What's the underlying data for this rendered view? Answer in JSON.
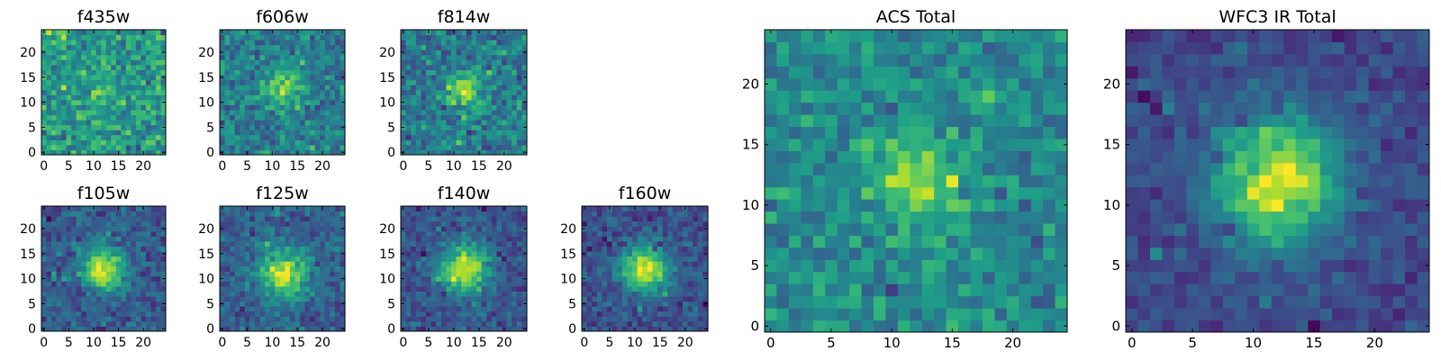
{
  "chart_data": [
    {
      "type": "heatmap",
      "title": "f435w",
      "grid_size": 25,
      "colormap": "viridis",
      "source_blob": {
        "cx": 12,
        "cy": 12,
        "sigma": 3.0,
        "amplitude": 0.05
      },
      "noise": 0.38,
      "bias": 0.55,
      "xticks": [
        "0",
        "5",
        "10",
        "15",
        "20"
      ],
      "yticks": [
        "0",
        "5",
        "10",
        "15",
        "20"
      ]
    },
    {
      "type": "heatmap",
      "title": "f606w",
      "grid_size": 25,
      "colormap": "viridis",
      "source_blob": {
        "cx": 12,
        "cy": 13,
        "sigma": 2.6,
        "amplitude": 0.38
      },
      "noise": 0.32,
      "bias": 0.42,
      "xticks": [
        "0",
        "5",
        "10",
        "15",
        "20"
      ],
      "yticks": [
        "0",
        "5",
        "10",
        "15",
        "20"
      ]
    },
    {
      "type": "heatmap",
      "title": "f814w",
      "grid_size": 25,
      "colormap": "viridis",
      "source_blob": {
        "cx": 12,
        "cy": 12,
        "sigma": 2.4,
        "amplitude": 0.42
      },
      "noise": 0.33,
      "bias": 0.42,
      "xticks": [
        "0",
        "5",
        "10",
        "15",
        "20"
      ],
      "yticks": [
        "0",
        "5",
        "10",
        "15",
        "20"
      ]
    },
    {
      "type": "heatmap",
      "title": "f105w",
      "grid_size": 25,
      "colormap": "viridis",
      "source_blob": {
        "cx": 12,
        "cy": 12,
        "sigma": 3.0,
        "amplitude": 0.65
      },
      "noise": 0.22,
      "bias": 0.28,
      "xticks": [
        "0",
        "5",
        "10",
        "15",
        "20"
      ],
      "yticks": [
        "0",
        "5",
        "10",
        "15",
        "20"
      ]
    },
    {
      "type": "heatmap",
      "title": "f125w",
      "grid_size": 25,
      "colormap": "viridis",
      "source_blob": {
        "cx": 12,
        "cy": 11,
        "sigma": 3.6,
        "amplitude": 0.6
      },
      "noise": 0.22,
      "bias": 0.3,
      "xticks": [
        "0",
        "5",
        "10",
        "15",
        "20"
      ],
      "yticks": [
        "0",
        "5",
        "10",
        "15",
        "20"
      ]
    },
    {
      "type": "heatmap",
      "title": "f140w",
      "grid_size": 25,
      "colormap": "viridis",
      "source_blob": {
        "cx": 12,
        "cy": 12,
        "sigma": 3.4,
        "amplitude": 0.7
      },
      "noise": 0.2,
      "bias": 0.26,
      "xticks": [
        "0",
        "5",
        "10",
        "15",
        "20"
      ],
      "yticks": [
        "0",
        "5",
        "10",
        "15",
        "20"
      ]
    },
    {
      "type": "heatmap",
      "title": "f160w",
      "grid_size": 25,
      "colormap": "viridis",
      "source_blob": {
        "cx": 12,
        "cy": 12,
        "sigma": 3.2,
        "amplitude": 0.72
      },
      "noise": 0.2,
      "bias": 0.25,
      "xticks": [
        "0",
        "5",
        "10",
        "15",
        "20"
      ],
      "yticks": [
        "0",
        "5",
        "10",
        "15",
        "20"
      ]
    },
    {
      "type": "heatmap",
      "title": "ACS Total",
      "grid_size": 25,
      "colormap": "viridis",
      "source_blob": {
        "cx": 12,
        "cy": 12,
        "sigma": 2.5,
        "amplitude": 0.38
      },
      "noise": 0.28,
      "bias": 0.48,
      "xticks": [
        "0",
        "5",
        "10",
        "15",
        "20"
      ],
      "yticks": [
        "0",
        "5",
        "10",
        "15",
        "20"
      ]
    },
    {
      "type": "heatmap",
      "title": "WFC3 IR Total",
      "grid_size": 25,
      "colormap": "viridis",
      "source_blob": {
        "cx": 12,
        "cy": 12,
        "sigma": 3.6,
        "amplitude": 0.72
      },
      "noise": 0.1,
      "bias": 0.22,
      "xticks": [
        "0",
        "5",
        "10",
        "15",
        "20"
      ],
      "yticks": [
        "0",
        "5",
        "10",
        "15",
        "20"
      ]
    }
  ]
}
